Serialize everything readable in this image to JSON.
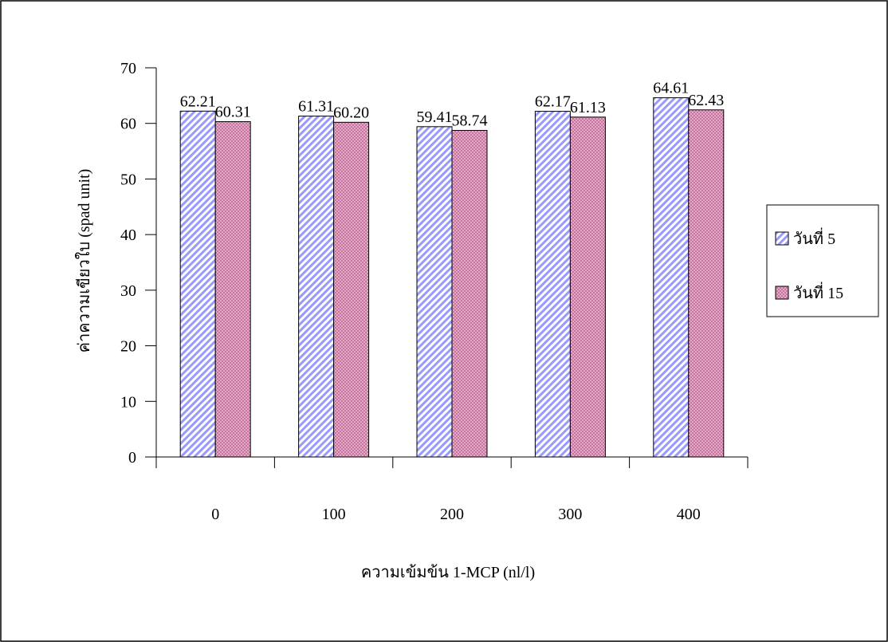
{
  "chart_data": {
    "type": "bar",
    "categories": [
      "0",
      "100",
      "200",
      "300",
      "400"
    ],
    "series": [
      {
        "name": "วันที่ 5",
        "values": [
          62.21,
          61.31,
          59.41,
          62.17,
          64.61
        ],
        "value_labels": [
          "62.21",
          "61.31",
          "59.41",
          "62.17",
          "64.61"
        ],
        "pattern": "diagonal-stripes",
        "color": "#9999ff"
      },
      {
        "name": "วันที่ 15",
        "values": [
          60.31,
          60.2,
          58.74,
          61.13,
          62.43
        ],
        "value_labels": [
          "60.31",
          "60.20",
          "58.74",
          "61.13",
          "62.43"
        ],
        "pattern": "dots",
        "color": "#993366"
      }
    ],
    "xlabel": "ความเข้มข้น 1-MCP (nl/l)",
    "ylabel": "ค่าความเขียวใบ (spad unit)",
    "ylim": [
      0,
      70
    ],
    "yticks": [
      0,
      10,
      20,
      30,
      40,
      50,
      60,
      70
    ],
    "ytick_labels": [
      "0",
      "10",
      "20",
      "30",
      "40",
      "50",
      "60",
      "70"
    ],
    "grid": false,
    "legend_position": "right"
  }
}
